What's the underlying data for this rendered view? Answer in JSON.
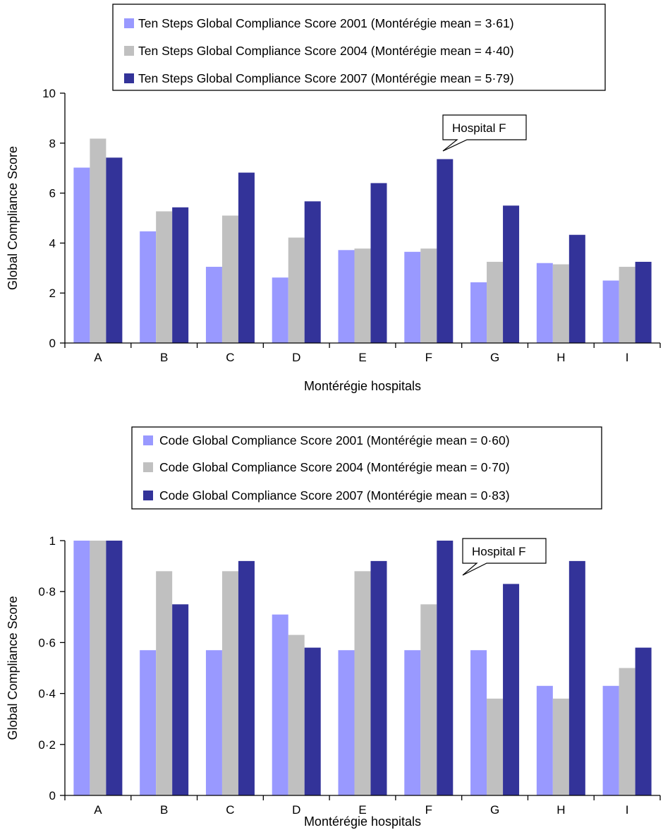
{
  "chart_data": [
    {
      "type": "bar",
      "categories": [
        "A",
        "B",
        "C",
        "D",
        "E",
        "F",
        "G",
        "H",
        "I"
      ],
      "series": [
        {
          "name": "Ten Steps Global Compliance Score 2001 (Montérégie mean = 3·61)",
          "color": "#9999ff",
          "values": [
            7.02,
            4.47,
            3.05,
            2.62,
            3.72,
            3.65,
            2.43,
            3.2,
            2.5
          ]
        },
        {
          "name": "Ten Steps Global Compliance Score 2004 (Montérégie mean = 4·40)",
          "color": "#c0c0c0",
          "values": [
            8.18,
            5.27,
            5.1,
            4.22,
            3.78,
            3.78,
            3.25,
            3.15,
            3.05
          ]
        },
        {
          "name": "Ten Steps Global Compliance Score 2007 (Montérégie mean = 5·79)",
          "color": "#333399",
          "values": [
            7.42,
            5.43,
            6.82,
            5.67,
            6.4,
            7.36,
            5.5,
            4.33,
            3.25
          ]
        }
      ],
      "xlabel": "Montérégie hospitals",
      "ylabel": "Global Compliance Score",
      "ylim": [
        0,
        10
      ],
      "yticks": [
        0,
        2,
        4,
        6,
        8,
        10
      ],
      "ytick_labels": [
        "0",
        "2",
        "4",
        "6",
        "8",
        "10"
      ],
      "legend_position": "top",
      "annotation": "Hospital F",
      "grid": false
    },
    {
      "type": "bar",
      "categories": [
        "A",
        "B",
        "C",
        "D",
        "E",
        "F",
        "G",
        "H",
        "I"
      ],
      "series": [
        {
          "name": "Code Global Compliance Score 2001 (Montérégie mean = 0·60)",
          "color": "#9999ff",
          "values": [
            1.0,
            0.57,
            0.57,
            0.71,
            0.57,
            0.57,
            0.57,
            0.43,
            0.43
          ]
        },
        {
          "name": "Code Global Compliance Score 2004 (Montérégie mean = 0·70)",
          "color": "#c0c0c0",
          "values": [
            1.0,
            0.88,
            0.88,
            0.63,
            0.88,
            0.75,
            0.38,
            0.38,
            0.5
          ]
        },
        {
          "name": "Code Global Compliance Score 2007 (Montérégie mean = 0·83)",
          "color": "#333399",
          "values": [
            1.0,
            0.75,
            0.92,
            0.58,
            0.92,
            1.0,
            0.83,
            0.92,
            0.58
          ]
        }
      ],
      "xlabel": "Montérégie hospitals",
      "ylabel": "Global Compliance Score",
      "ylim": [
        0,
        1
      ],
      "yticks": [
        0,
        0.2,
        0.4,
        0.6,
        0.8,
        1
      ],
      "ytick_labels": [
        "0",
        "0·2",
        "0·4",
        "0·6",
        "0·8",
        "1"
      ],
      "legend_position": "top",
      "annotation": "Hospital F",
      "grid": false
    }
  ]
}
